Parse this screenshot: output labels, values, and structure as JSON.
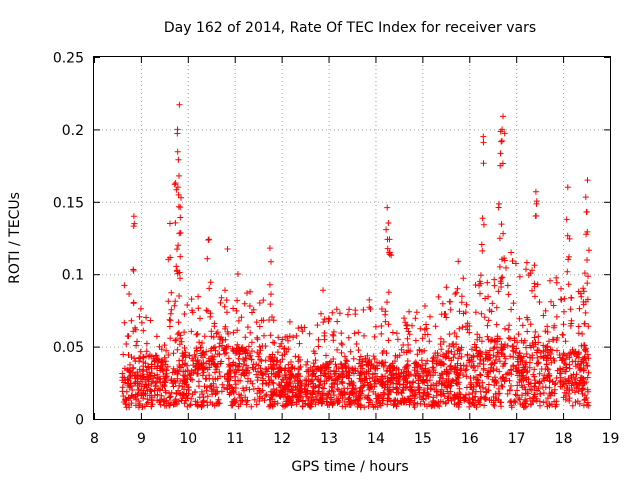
{
  "chart_data": {
    "type": "scatter",
    "title": "Day 162 of 2014, Rate Of TEC Index for receiver vars",
    "xlabel": "GPS time / hours",
    "ylabel": "ROTI / TECUs",
    "xlim": [
      8,
      19
    ],
    "ylim": [
      0,
      0.25
    ],
    "xticks": [
      "8",
      "9",
      "10",
      "11",
      "12",
      "13",
      "14",
      "15",
      "16",
      "17",
      "18",
      "19"
    ],
    "yticks": [
      "0",
      "0.05",
      "0.1",
      "0.15",
      "0.2",
      "0.25"
    ],
    "grid": true,
    "marker": "+",
    "color": "#ff0000",
    "x_range": [
      8.6,
      18.55
    ],
    "notable_points": [
      {
        "x": 9.82,
        "y": 0.217
      },
      {
        "x": 9.78,
        "y": 0.2
      },
      {
        "x": 9.8,
        "y": 0.179
      },
      {
        "x": 9.74,
        "y": 0.163
      },
      {
        "x": 9.62,
        "y": 0.135
      },
      {
        "x": 8.85,
        "y": 0.14
      },
      {
        "x": 10.45,
        "y": 0.124
      },
      {
        "x": 11.75,
        "y": 0.118
      },
      {
        "x": 14.25,
        "y": 0.146
      },
      {
        "x": 14.3,
        "y": 0.124
      },
      {
        "x": 16.3,
        "y": 0.195
      },
      {
        "x": 16.72,
        "y": 0.209
      },
      {
        "x": 16.7,
        "y": 0.2
      },
      {
        "x": 16.66,
        "y": 0.175
      },
      {
        "x": 17.42,
        "y": 0.157
      },
      {
        "x": 18.1,
        "y": 0.16
      },
      {
        "x": 18.52,
        "y": 0.165
      },
      {
        "x": 18.5,
        "y": 0.143
      }
    ],
    "envelope": [
      {
        "x": 8.7,
        "mean": 0.03,
        "spread": 0.03
      },
      {
        "x": 9.0,
        "mean": 0.032,
        "spread": 0.035
      },
      {
        "x": 9.5,
        "mean": 0.035,
        "spread": 0.04
      },
      {
        "x": 10.0,
        "mean": 0.035,
        "spread": 0.04
      },
      {
        "x": 10.5,
        "mean": 0.038,
        "spread": 0.045
      },
      {
        "x": 11.0,
        "mean": 0.04,
        "spread": 0.045
      },
      {
        "x": 11.5,
        "mean": 0.038,
        "spread": 0.045
      },
      {
        "x": 12.0,
        "mean": 0.025,
        "spread": 0.025
      },
      {
        "x": 12.5,
        "mean": 0.025,
        "spread": 0.03
      },
      {
        "x": 13.0,
        "mean": 0.028,
        "spread": 0.035
      },
      {
        "x": 13.5,
        "mean": 0.03,
        "spread": 0.04
      },
      {
        "x": 14.0,
        "mean": 0.03,
        "spread": 0.045
      },
      {
        "x": 14.5,
        "mean": 0.025,
        "spread": 0.035
      },
      {
        "x": 15.0,
        "mean": 0.03,
        "spread": 0.04
      },
      {
        "x": 15.5,
        "mean": 0.035,
        "spread": 0.045
      },
      {
        "x": 16.0,
        "mean": 0.04,
        "spread": 0.05
      },
      {
        "x": 16.5,
        "mean": 0.045,
        "spread": 0.06
      },
      {
        "x": 17.0,
        "mean": 0.045,
        "spread": 0.06
      },
      {
        "x": 17.5,
        "mean": 0.04,
        "spread": 0.055
      },
      {
        "x": 18.0,
        "mean": 0.035,
        "spread": 0.05
      },
      {
        "x": 18.5,
        "mean": 0.04,
        "spread": 0.05
      }
    ]
  }
}
